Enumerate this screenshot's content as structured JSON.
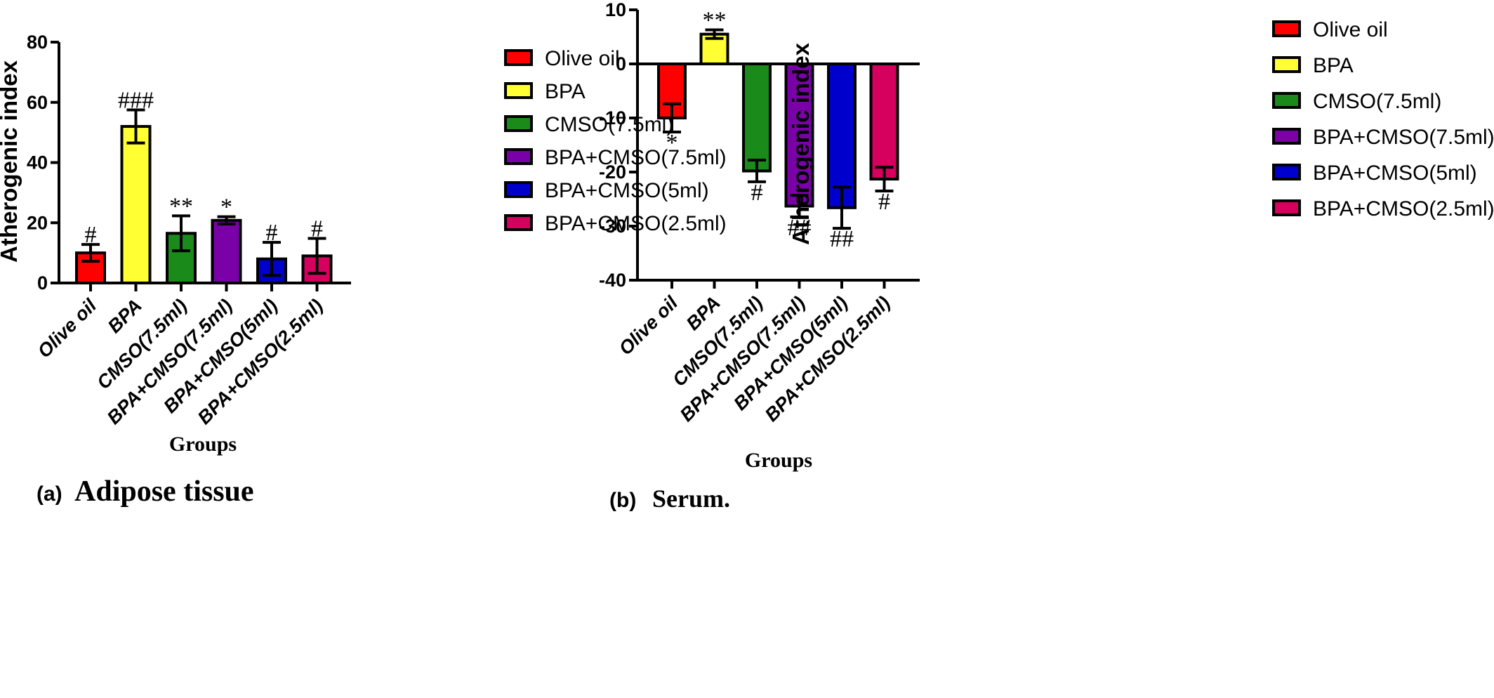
{
  "chart_data": [
    {
      "type": "bar",
      "panel_label": "(a)",
      "title": "Adipose tissue",
      "xlabel": "Groups",
      "ylabel": "Atherogenic index",
      "ylim": [
        0,
        80
      ],
      "yticks": [
        0,
        20,
        40,
        60,
        80
      ],
      "grid": false,
      "legend_position": "right",
      "categories": [
        "Olive oil",
        "BPA",
        "CMSO(7.5ml)",
        "BPA+CMSO(7.5ml)",
        "BPA+CMSO(5ml)",
        "BPA+CMSO(2.5ml)"
      ],
      "legend": [
        "Olive oil",
        "BPA",
        "CMSO(7.5ml)",
        "BPA+CMSO(7.5ml)",
        "BPA+CMSO(5ml)",
        "BPA+CMSO(2.5ml)"
      ],
      "values": [
        10,
        52,
        16.5,
        20.8,
        8,
        9
      ],
      "errors": [
        2.8,
        5.5,
        5.8,
        1.2,
        5.5,
        5.8
      ],
      "significance": [
        "#",
        "###",
        "**",
        "*",
        "#",
        "#"
      ],
      "colors": [
        "#ff0000",
        "#ffff33",
        "#1a8a1a",
        "#7a00a8",
        "#0000cc",
        "#d6005f"
      ]
    },
    {
      "type": "bar",
      "panel_label": "(b)",
      "title": "Serum.",
      "xlabel": "Groups",
      "ylabel": "Atherogenic index",
      "ylim": [
        -40,
        10
      ],
      "yticks": [
        10,
        0,
        -10,
        -20,
        -30,
        -40
      ],
      "grid": false,
      "legend_position": "right",
      "categories": [
        "Olive oil",
        "BPA",
        "CMSO(7.5ml)",
        "BPA+CMSO(7.5ml)",
        "BPA+CMSO(5ml)",
        "BPA+CMSO(2.5ml)"
      ],
      "legend": [
        "Olive oil",
        "BPA",
        "CMSO(7.5ml)",
        "BPA+CMSO(7.5ml)",
        "BPA+CMSO(5ml)",
        "BPA+CMSO(2.5ml)"
      ],
      "values": [
        -10,
        5.5,
        -19.8,
        -26.3,
        -26.6,
        -21.3
      ],
      "errors": [
        2.6,
        0.8,
        2,
        2,
        3.8,
        2.2
      ],
      "significance": [
        "*",
        "**",
        "#",
        "##",
        "##",
        "#"
      ],
      "colors": [
        "#ff0000",
        "#ffff33",
        "#1a8a1a",
        "#7a00a8",
        "#0000cc",
        "#d6005f"
      ]
    }
  ]
}
